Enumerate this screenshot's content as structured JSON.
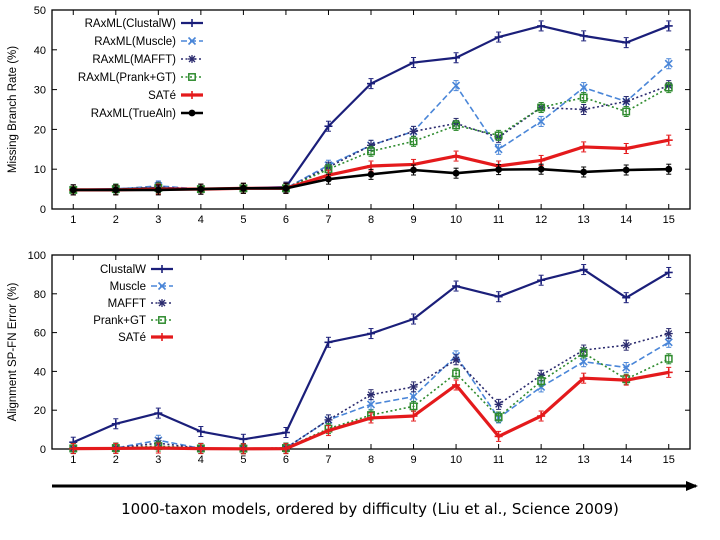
{
  "caption": "1000-taxon models, ordered by difficulty (Liu et al., Science 2009)",
  "chart_data": [
    {
      "type": "line",
      "title": "",
      "xlabel": "",
      "ylabel": "Missing Branch Rate (%)",
      "x": [
        1,
        2,
        3,
        4,
        5,
        6,
        7,
        8,
        9,
        10,
        11,
        12,
        13,
        14,
        15
      ],
      "xlim": [
        0.5,
        15.5
      ],
      "ylim": [
        0,
        50
      ],
      "yticks": [
        0,
        10,
        20,
        30,
        40,
        50
      ],
      "legend_position": "top-left",
      "grid": false,
      "series": [
        {
          "name": "RAxML(ClustalW)",
          "color": "#1b1f7a",
          "style": "solid",
          "marker": "plus",
          "width": 2.2,
          "values": [
            4.8,
            5.0,
            5.3,
            5.0,
            5.2,
            5.5,
            20.8,
            31.5,
            36.8,
            38.0,
            43.2,
            46.0,
            43.5,
            41.8,
            46.0
          ]
        },
        {
          "name": "RAxML(Muscle)",
          "color": "#4a86d8",
          "style": "dashed",
          "marker": "x",
          "width": 1.6,
          "values": [
            4.8,
            5.0,
            5.8,
            5.0,
            5.2,
            5.2,
            11.0,
            16.0,
            19.5,
            31.0,
            15.0,
            22.0,
            30.5,
            27.0,
            36.5
          ]
        },
        {
          "name": "RAxML(MAFFT)",
          "color": "#2b2b6e",
          "style": "dotted",
          "marker": "star",
          "width": 1.6,
          "values": [
            4.8,
            5.0,
            5.5,
            5.0,
            5.2,
            5.2,
            10.5,
            16.0,
            19.5,
            21.5,
            18.0,
            25.5,
            25.0,
            27.0,
            31.0
          ]
        },
        {
          "name": "RAxML(Prank+GT)",
          "color": "#2e8b2e",
          "style": "dotted",
          "marker": "square",
          "width": 1.6,
          "values": [
            4.8,
            5.0,
            5.3,
            5.0,
            5.2,
            5.2,
            10.0,
            14.5,
            17.0,
            21.0,
            18.5,
            25.5,
            28.0,
            24.5,
            30.5
          ]
        },
        {
          "name": "SATé",
          "color": "#e41a1c",
          "style": "solid",
          "marker": "plus",
          "width": 3.2,
          "values": [
            4.8,
            4.8,
            5.0,
            5.0,
            5.2,
            5.2,
            8.5,
            10.8,
            11.2,
            13.3,
            10.8,
            12.2,
            15.6,
            15.2,
            17.3
          ]
        },
        {
          "name": "RAxML(TrueAln)",
          "color": "#000000",
          "style": "solid",
          "marker": "circle",
          "width": 2.6,
          "values": [
            4.8,
            4.8,
            4.8,
            5.0,
            5.2,
            5.2,
            7.5,
            8.7,
            9.8,
            9.0,
            9.9,
            10.0,
            9.3,
            9.8,
            10.0
          ]
        }
      ]
    },
    {
      "type": "line",
      "title": "",
      "xlabel": "",
      "ylabel": "Alignment SP-FN Error (%)",
      "x": [
        1,
        2,
        3,
        4,
        5,
        6,
        7,
        8,
        9,
        10,
        11,
        12,
        13,
        14,
        15
      ],
      "xlim": [
        0.5,
        15.5
      ],
      "ylim": [
        0,
        100
      ],
      "yticks": [
        0,
        20,
        40,
        60,
        80,
        100
      ],
      "legend_position": "top-left",
      "grid": false,
      "series": [
        {
          "name": "ClustalW",
          "color": "#1b1f7a",
          "style": "solid",
          "marker": "plus",
          "width": 2.2,
          "values": [
            3.5,
            13.0,
            18.5,
            9.0,
            5.0,
            8.5,
            55.0,
            59.5,
            67.0,
            84.0,
            78.5,
            87.0,
            92.5,
            78.0,
            91.0
          ]
        },
        {
          "name": "Muscle",
          "color": "#4a86d8",
          "style": "dashed",
          "marker": "x",
          "width": 1.6,
          "values": [
            0.3,
            0.5,
            4.5,
            0.3,
            0.2,
            0.5,
            15.0,
            23.0,
            27.0,
            48.0,
            16.0,
            32.0,
            45.0,
            42.0,
            55.0
          ]
        },
        {
          "name": "MAFFT",
          "color": "#2b2b6e",
          "style": "dotted",
          "marker": "star",
          "width": 1.6,
          "values": [
            0.3,
            0.5,
            3.0,
            0.3,
            0.2,
            0.5,
            15.0,
            28.0,
            32.0,
            46.0,
            23.0,
            38.0,
            51.0,
            53.5,
            59.5
          ]
        },
        {
          "name": "Prank+GT",
          "color": "#2e8b2e",
          "style": "dotted",
          "marker": "square",
          "width": 1.6,
          "values": [
            0.3,
            0.5,
            1.5,
            0.3,
            0.2,
            0.5,
            10.5,
            17.5,
            22.0,
            39.0,
            16.5,
            35.0,
            49.5,
            36.0,
            46.5
          ]
        },
        {
          "name": "SATé",
          "color": "#e41a1c",
          "style": "solid",
          "marker": "plus",
          "width": 3.2,
          "values": [
            0.2,
            0.3,
            0.5,
            0.2,
            0.1,
            0.2,
            9.5,
            16.0,
            17.0,
            33.0,
            6.5,
            17.0,
            36.5,
            35.5,
            39.5
          ]
        }
      ]
    }
  ]
}
